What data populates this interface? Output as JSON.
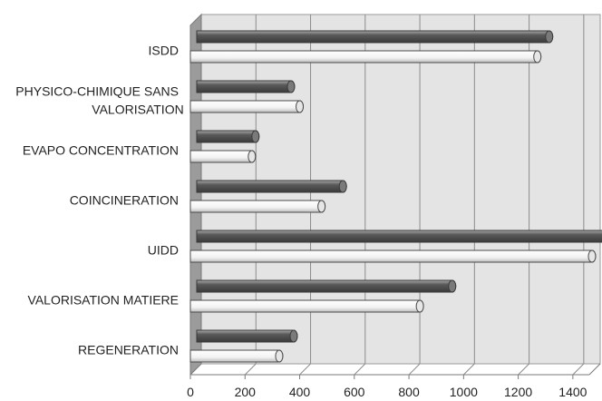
{
  "chart_data": {
    "type": "bar",
    "orientation": "horizontal",
    "style": "3d-cylinder",
    "categories": [
      [
        "ISDD"
      ],
      [
        "PHYSICO-CHIMIQUE SANS",
        "VALORISATION"
      ],
      [
        "EVAPO CONCENTRATION"
      ],
      [
        "COINCINERATION"
      ],
      [
        "UIDD"
      ],
      [
        "VALORISATION MATIERE"
      ],
      [
        "REGENERATION"
      ]
    ],
    "series": [
      {
        "values": [
          1290,
          345,
          215,
          535,
          1500,
          935,
          355
        ],
        "color": "#6e6e6e"
      },
      {
        "values": [
          1270,
          400,
          225,
          480,
          1470,
          840,
          325
        ],
        "color": "#ffffff"
      }
    ],
    "xlim": [
      0,
      1500
    ],
    "xticks": [
      0,
      200,
      400,
      600,
      800,
      1000,
      1200,
      1400
    ],
    "title": "",
    "xlabel": "",
    "ylabel": "",
    "grid": true,
    "legend": "none",
    "background": "#e4e4e4",
    "floor_color": "#9b9b9b"
  }
}
